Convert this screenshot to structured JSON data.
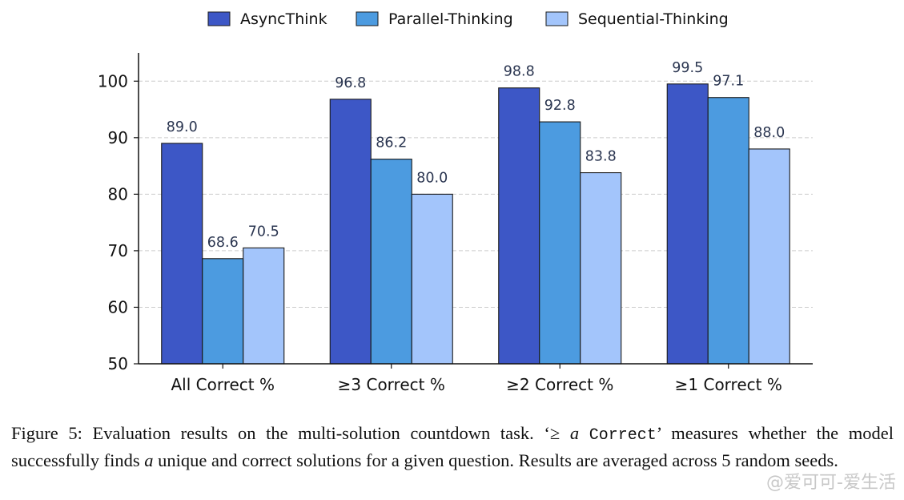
{
  "chart_data": {
    "type": "bar",
    "categories": [
      "All Correct %",
      "≥3 Correct %",
      "≥2 Correct %",
      "≥1 Correct %"
    ],
    "series": [
      {
        "name": "AsyncThink",
        "color": "#3d57c6",
        "values": [
          89.0,
          96.8,
          98.8,
          99.5
        ],
        "labels": [
          "89.0",
          "96.8",
          "98.8",
          "99.5"
        ]
      },
      {
        "name": "Parallel-Thinking",
        "color": "#4c9be0",
        "values": [
          68.6,
          86.2,
          92.8,
          97.1
        ],
        "labels": [
          "68.6",
          "86.2",
          "92.8",
          "97.1"
        ]
      },
      {
        "name": "Sequential-Thinking",
        "color": "#a3c5fb",
        "values": [
          70.5,
          80.0,
          83.8,
          88.0
        ],
        "labels": [
          "70.5",
          "80.0",
          "83.8",
          "88.0"
        ]
      }
    ],
    "ylim": [
      50,
      105
    ],
    "yticks": [
      50,
      60,
      70,
      80,
      90,
      100
    ],
    "grid": true,
    "legend_position": "top-center"
  },
  "caption": {
    "part1": "Figure 5: Evaluation results on the multi-solution countdown task. ‘≥ ",
    "a1": "a",
    "mono": "Correct",
    "part2": "’ measures whether the model successfully finds ",
    "a2": "a",
    "part3": " unique and correct solutions for a given question. Results are averaged across 5 random seeds."
  },
  "watermark": "@爱可可-爱生活"
}
